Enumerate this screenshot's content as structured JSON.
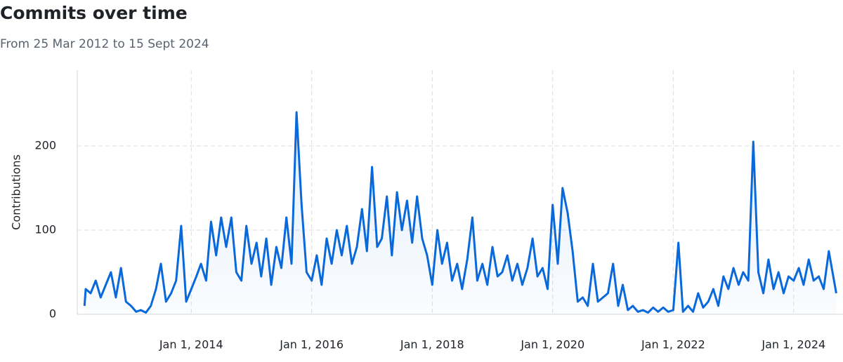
{
  "chart_data": {
    "type": "line",
    "title": "Commits over time",
    "subtitle": "From 25 Mar 2012 to 15 Sept 2024",
    "y_label": "Contributions",
    "x": [
      "2012-03-25",
      "2012-04-01",
      "2012-05-01",
      "2012-06-01",
      "2012-07-01",
      "2012-08-01",
      "2012-09-01",
      "2012-10-01",
      "2012-11-01",
      "2012-12-01",
      "2013-01-01",
      "2013-02-01",
      "2013-03-01",
      "2013-04-01",
      "2013-05-01",
      "2013-06-01",
      "2013-07-01",
      "2013-08-01",
      "2013-09-01",
      "2013-10-01",
      "2013-11-01",
      "2013-12-01",
      "2014-01-01",
      "2014-02-01",
      "2014-03-01",
      "2014-04-01",
      "2014-05-01",
      "2014-06-01",
      "2014-07-01",
      "2014-08-01",
      "2014-09-01",
      "2014-10-01",
      "2014-11-01",
      "2014-12-01",
      "2015-01-01",
      "2015-02-01",
      "2015-03-01",
      "2015-04-01",
      "2015-05-01",
      "2015-06-01",
      "2015-07-01",
      "2015-08-01",
      "2015-09-01",
      "2015-10-01",
      "2015-11-01",
      "2015-12-01",
      "2016-01-01",
      "2016-02-01",
      "2016-03-01",
      "2016-04-01",
      "2016-05-01",
      "2016-06-01",
      "2016-07-01",
      "2016-08-01",
      "2016-09-01",
      "2016-10-01",
      "2016-11-01",
      "2016-12-01",
      "2017-01-01",
      "2017-02-01",
      "2017-03-01",
      "2017-04-01",
      "2017-05-01",
      "2017-06-01",
      "2017-07-01",
      "2017-08-01",
      "2017-09-01",
      "2017-10-01",
      "2017-11-01",
      "2017-12-01",
      "2018-01-01",
      "2018-02-01",
      "2018-03-01",
      "2018-04-01",
      "2018-05-01",
      "2018-06-01",
      "2018-07-01",
      "2018-08-01",
      "2018-09-01",
      "2018-10-01",
      "2018-11-01",
      "2018-12-01",
      "2019-01-01",
      "2019-02-01",
      "2019-03-01",
      "2019-04-01",
      "2019-05-01",
      "2019-06-01",
      "2019-07-01",
      "2019-08-01",
      "2019-09-01",
      "2019-10-01",
      "2019-11-01",
      "2019-12-01",
      "2020-01-01",
      "2020-02-01",
      "2020-03-01",
      "2020-04-01",
      "2020-05-01",
      "2020-06-01",
      "2020-07-01",
      "2020-08-01",
      "2020-09-01",
      "2020-10-01",
      "2020-11-01",
      "2020-12-01",
      "2021-01-01",
      "2021-02-01",
      "2021-03-01",
      "2021-04-01",
      "2021-05-01",
      "2021-06-01",
      "2021-07-01",
      "2021-08-01",
      "2021-09-01",
      "2021-10-01",
      "2021-11-01",
      "2021-12-01",
      "2022-01-01",
      "2022-02-01",
      "2022-03-01",
      "2022-04-01",
      "2022-05-01",
      "2022-06-01",
      "2022-07-01",
      "2022-08-01",
      "2022-09-01",
      "2022-10-01",
      "2022-11-01",
      "2022-12-01",
      "2023-01-01",
      "2023-02-01",
      "2023-03-01",
      "2023-04-01",
      "2023-05-01",
      "2023-06-01",
      "2023-07-01",
      "2023-08-01",
      "2023-09-01",
      "2023-10-01",
      "2023-11-01",
      "2023-12-01",
      "2024-01-01",
      "2024-02-01",
      "2024-03-01",
      "2024-04-01",
      "2024-05-01",
      "2024-06-01",
      "2024-07-01",
      "2024-08-01",
      "2024-09-15"
    ],
    "series": [
      {
        "name": "Contributions",
        "color": "#0969da",
        "values": [
          10,
          30,
          25,
          40,
          20,
          35,
          50,
          20,
          55,
          15,
          10,
          3,
          5,
          2,
          10,
          30,
          60,
          15,
          25,
          40,
          105,
          15,
          30,
          45,
          60,
          40,
          110,
          70,
          115,
          80,
          115,
          50,
          40,
          105,
          60,
          85,
          45,
          90,
          35,
          80,
          55,
          115,
          60,
          240,
          130,
          50,
          40,
          70,
          35,
          90,
          60,
          100,
          70,
          105,
          60,
          80,
          125,
          75,
          175,
          80,
          90,
          140,
          70,
          145,
          100,
          135,
          85,
          140,
          90,
          70,
          35,
          100,
          60,
          85,
          40,
          60,
          30,
          65,
          115,
          40,
          60,
          35,
          80,
          45,
          50,
          70,
          40,
          60,
          35,
          55,
          90,
          45,
          55,
          30,
          130,
          60,
          150,
          120,
          75,
          15,
          20,
          10,
          60,
          15,
          20,
          25,
          60,
          10,
          35,
          5,
          10,
          3,
          5,
          2,
          8,
          3,
          8,
          3,
          5,
          85,
          3,
          10,
          3,
          25,
          8,
          15,
          30,
          10,
          45,
          30,
          55,
          35,
          50,
          40,
          205,
          50,
          25,
          65,
          30,
          50,
          25,
          45,
          40,
          55,
          35,
          65,
          40,
          45,
          30,
          75,
          25
        ]
      }
    ],
    "xlim": [
      "2012-02-10",
      "2024-10-26"
    ],
    "xticks": [
      {
        "value": "2014-01-01",
        "label": "Jan 1, 2014"
      },
      {
        "value": "2016-01-01",
        "label": "Jan 1, 2016"
      },
      {
        "value": "2018-01-01",
        "label": "Jan 1, 2018"
      },
      {
        "value": "2020-01-01",
        "label": "Jan 1, 2020"
      },
      {
        "value": "2022-01-01",
        "label": "Jan 1, 2022"
      },
      {
        "value": "2024-01-01",
        "label": "Jan 1, 2024"
      }
    ],
    "ylim": [
      0,
      290
    ],
    "yticks": [
      0,
      100,
      200
    ],
    "grid": true
  }
}
